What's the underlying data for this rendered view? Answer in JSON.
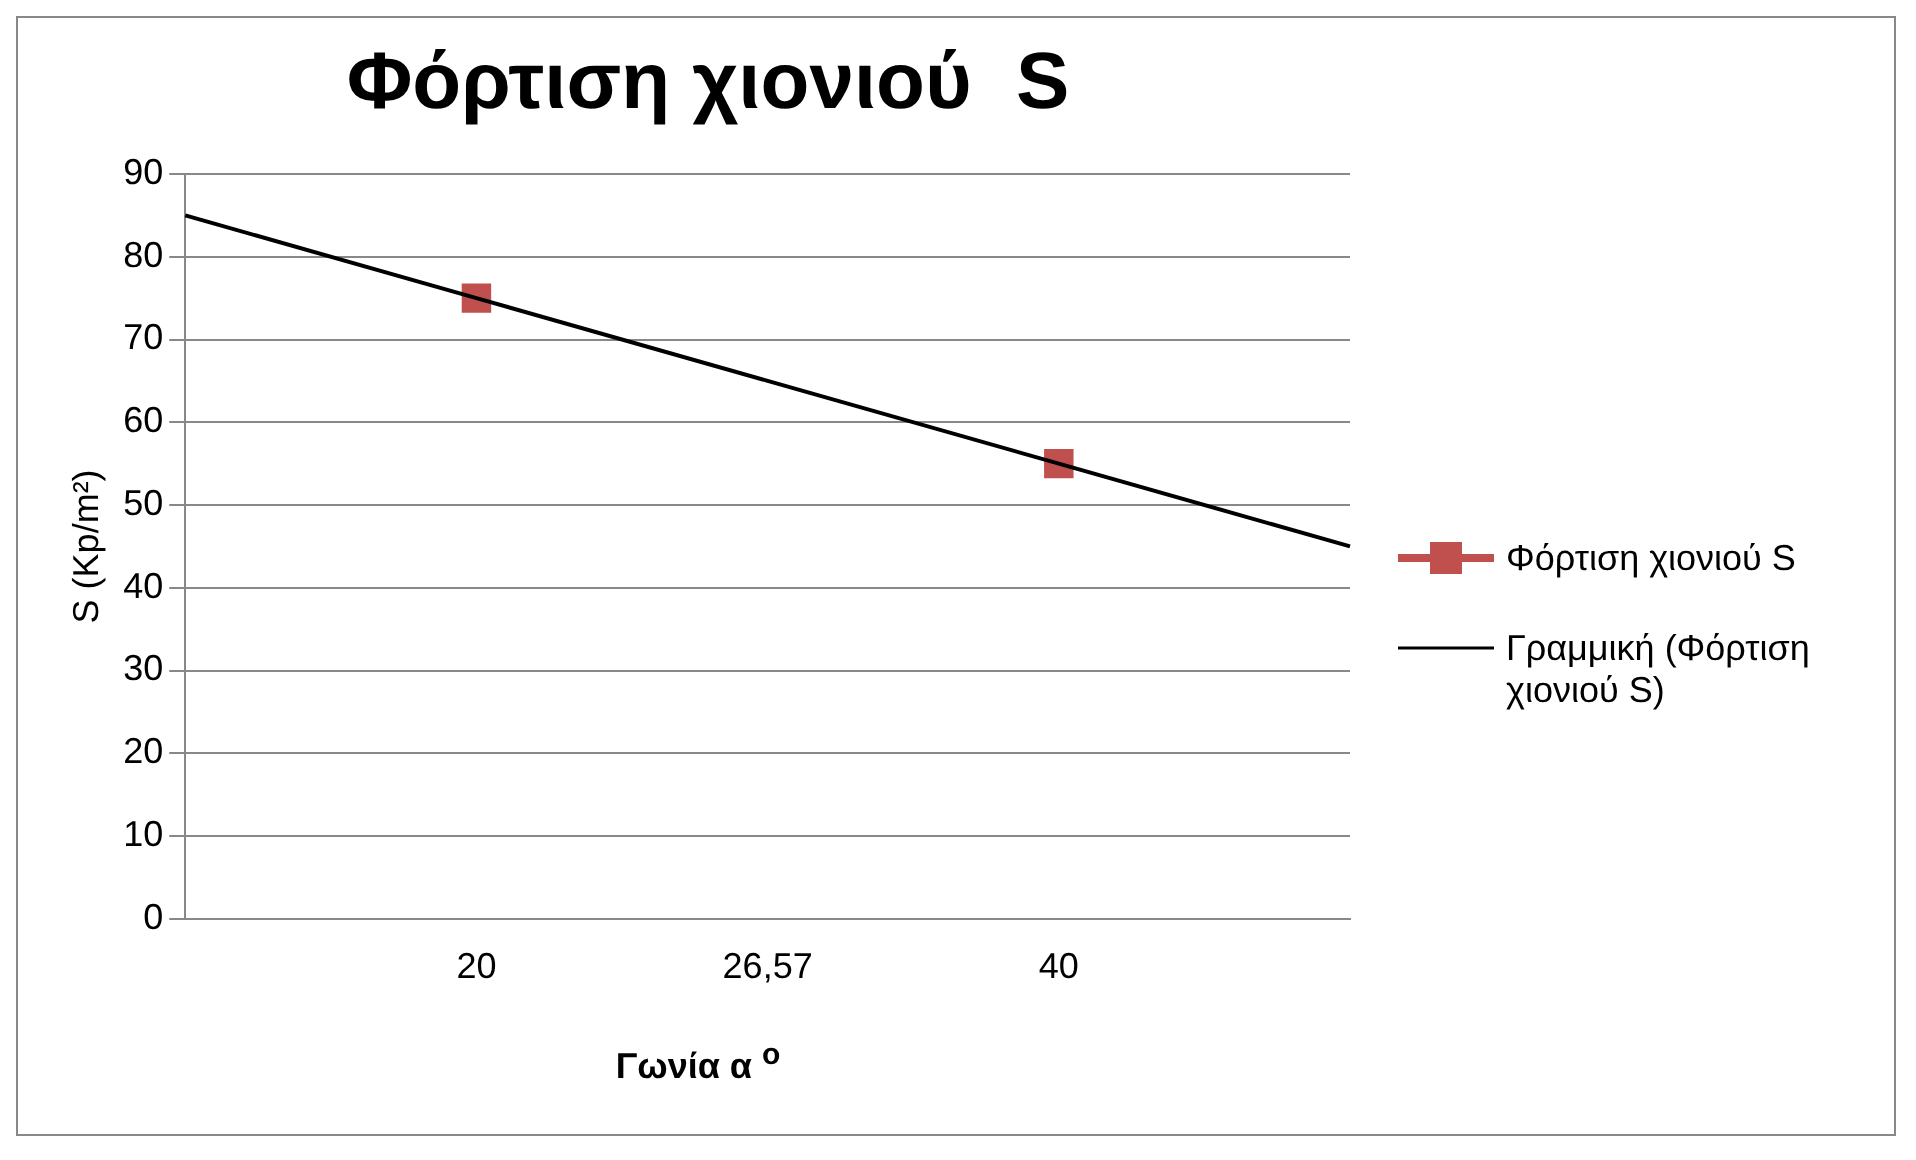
{
  "chart_data": {
    "type": "line",
    "title": "Φόρτιση χιονιού  S",
    "xlabel": "Γωνία α $^{o}$",
    "ylabel": "S (Kp/m²)",
    "categories": [
      null,
      "20",
      "26,57",
      "40",
      null
    ],
    "series": [
      {
        "name": "Φόρτιση χιονιού  S",
        "type": "scatter",
        "color": "#c0504d",
        "marker": "square",
        "values": [
          null,
          75,
          null,
          55,
          null
        ]
      },
      {
        "name": "Γραμμική (Φόρτιση χιονιού  S)",
        "color": "#000000",
        "marker": "none",
        "values": [
          85,
          75,
          65,
          55,
          45
        ]
      }
    ],
    "ylim": [
      0,
      90
    ],
    "yticks": [
      0,
      10,
      20,
      30,
      40,
      50,
      60,
      70,
      80,
      90
    ],
    "grid": "y",
    "legend": "right"
  }
}
